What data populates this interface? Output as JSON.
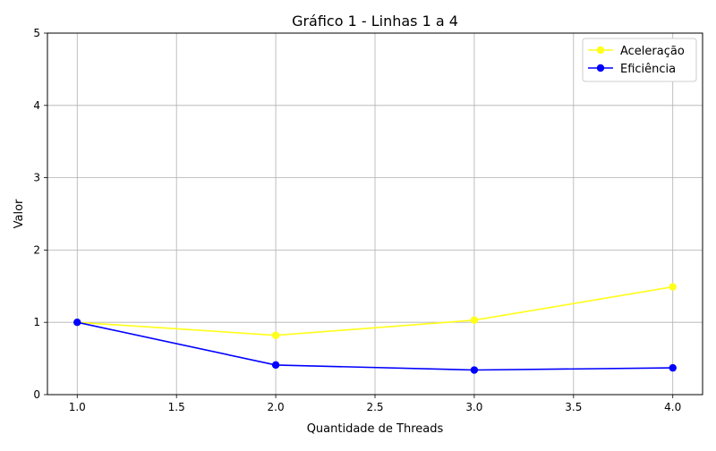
{
  "chart_data": {
    "type": "line",
    "title": "Gráfico 1 - Linhas 1 a 4",
    "xlabel": "Quantidade de Threads",
    "ylabel": "Valor",
    "xlim": [
      0.85,
      4.15
    ],
    "ylim": [
      0,
      5
    ],
    "xticks": [
      1.0,
      1.5,
      2.0,
      2.5,
      3.0,
      3.5,
      4.0
    ],
    "xtick_labels": [
      "1.0",
      "1.5",
      "2.0",
      "2.5",
      "3.0",
      "3.5",
      "4.0"
    ],
    "yticks": [
      0,
      1,
      2,
      3,
      4,
      5
    ],
    "ytick_labels": [
      "0",
      "1",
      "2",
      "3",
      "4",
      "5"
    ],
    "grid": true,
    "legend_position": "top-right",
    "x": [
      1,
      2,
      3,
      4
    ],
    "series": [
      {
        "name": "Aceleração",
        "color": "#ffff1a",
        "values": [
          1.0,
          0.82,
          1.03,
          1.49
        ]
      },
      {
        "name": "Eficiência",
        "color": "#0000ff",
        "values": [
          1.0,
          0.41,
          0.34,
          0.37
        ]
      }
    ]
  }
}
